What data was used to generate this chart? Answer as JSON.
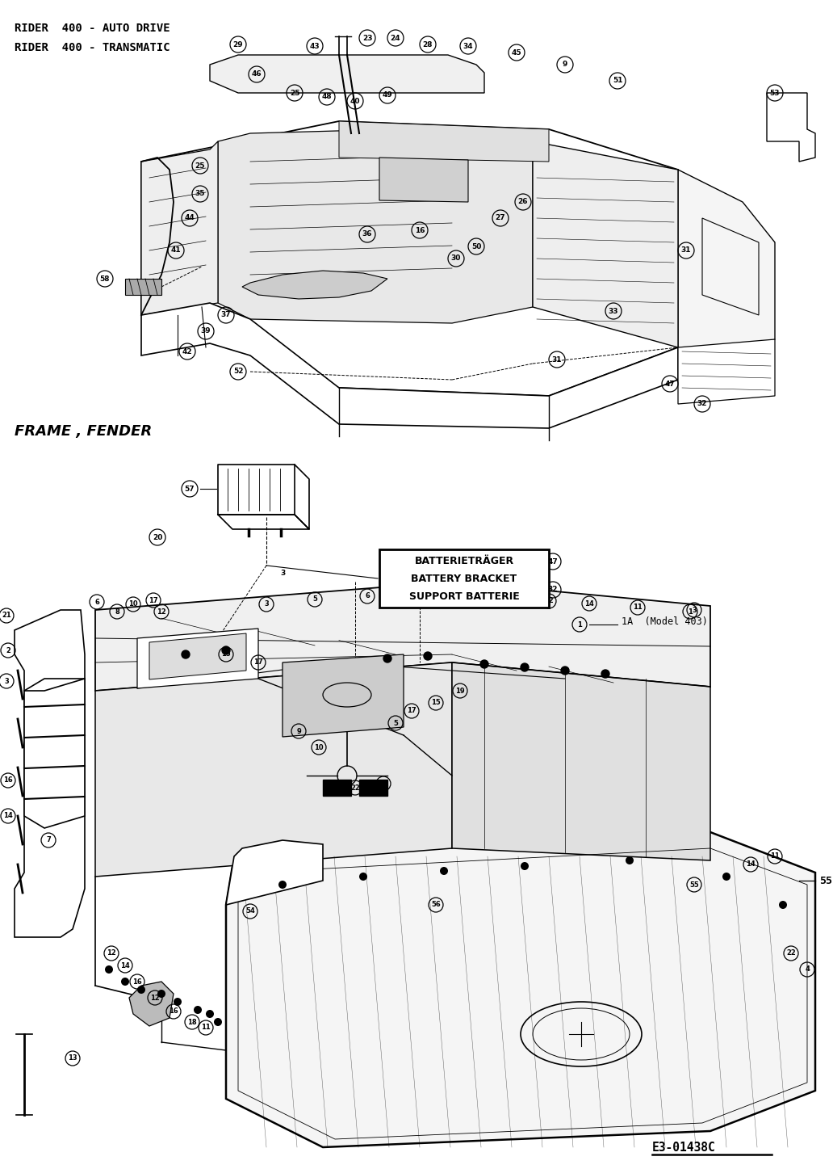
{
  "title_line1": "RIDER  400 - AUTO DRIVE",
  "title_line2": "RIDER  400 - TRANSMATIC",
  "section_label": "FRAME , FENDER",
  "battery_label_de": "BATTERIETRÄGER",
  "battery_label_en": "BATTERY BRACKET",
  "battery_label_fr": "SUPPORT BATTERIE",
  "model_note": "1A  (Model 403)",
  "ref_number": "E3-01438C",
  "part_number_ref": "55",
  "background_color": "#ffffff",
  "text_color": "#000000",
  "fig_width": 10.32,
  "fig_height": 14.42,
  "dpi": 100
}
